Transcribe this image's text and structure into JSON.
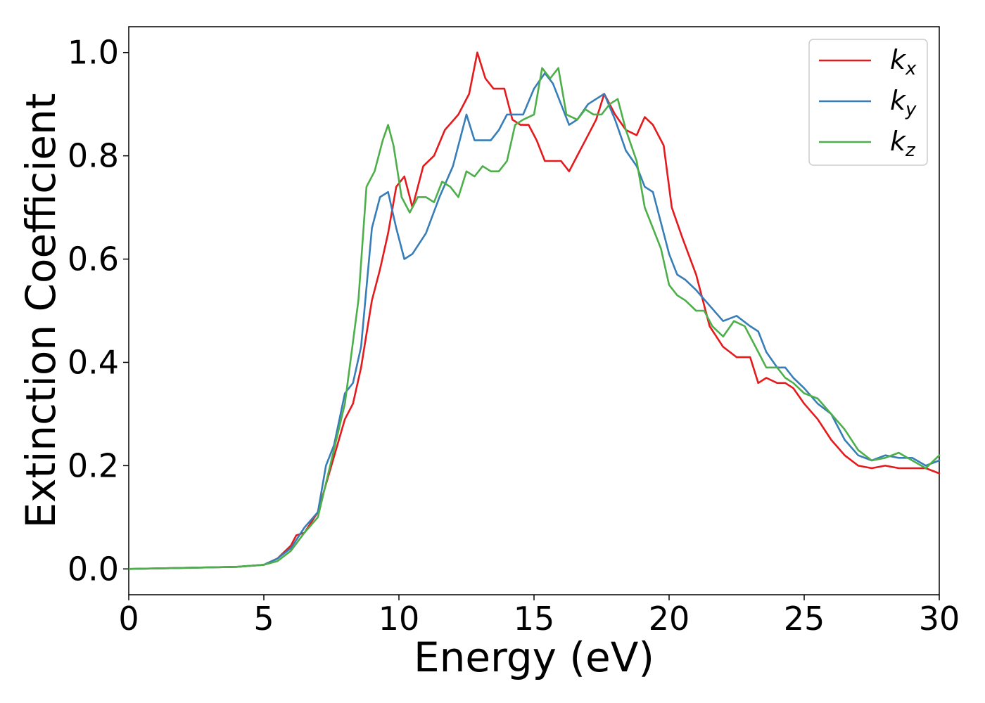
{
  "chart_data": {
    "type": "line",
    "xlabel": "Energy (eV)",
    "ylabel": "Extinction Coefficient",
    "xlim": [
      0,
      30
    ],
    "ylim": [
      -0.05,
      1.05
    ],
    "xticks": [
      0,
      5,
      10,
      15,
      20,
      25,
      30
    ],
    "xtick_labels": [
      "0",
      "5",
      "10",
      "15",
      "20",
      "25",
      "30"
    ],
    "yticks": [
      0.0,
      0.2,
      0.4,
      0.6,
      0.8,
      1.0
    ],
    "ytick_labels": [
      "0.0",
      "0.2",
      "0.4",
      "0.6",
      "0.8",
      "1.0"
    ],
    "grid": false,
    "legend_position": "top-right",
    "series": [
      {
        "name": "k_x",
        "label_main": "k",
        "label_sub": "x",
        "color": "#e41a1c",
        "x": [
          0,
          2,
          4,
          5,
          5.5,
          6,
          6.2,
          6.5,
          7,
          7.5,
          8,
          8.3,
          8.6,
          9,
          9.3,
          9.6,
          9.9,
          10.2,
          10.5,
          10.9,
          11.3,
          11.7,
          12.2,
          12.6,
          12.9,
          13.2,
          13.5,
          13.9,
          14.2,
          14.5,
          14.8,
          15.1,
          15.4,
          15.7,
          16,
          16.3,
          16.6,
          17,
          17.3,
          17.6,
          18,
          18.4,
          18.8,
          19.1,
          19.4,
          19.8,
          20.1,
          20.5,
          21,
          21.5,
          22,
          22.5,
          23,
          23.3,
          23.6,
          24,
          24.3,
          24.6,
          25,
          25.5,
          26,
          26.5,
          27,
          27.5,
          28,
          28.5,
          29,
          29.5,
          30
        ],
        "y": [
          0.0,
          0.002,
          0.004,
          0.008,
          0.02,
          0.045,
          0.065,
          0.07,
          0.11,
          0.2,
          0.29,
          0.32,
          0.39,
          0.52,
          0.58,
          0.65,
          0.74,
          0.76,
          0.7,
          0.78,
          0.8,
          0.85,
          0.88,
          0.92,
          1.0,
          0.95,
          0.93,
          0.93,
          0.87,
          0.86,
          0.86,
          0.83,
          0.79,
          0.79,
          0.79,
          0.77,
          0.8,
          0.84,
          0.87,
          0.92,
          0.88,
          0.85,
          0.84,
          0.875,
          0.86,
          0.82,
          0.7,
          0.64,
          0.57,
          0.47,
          0.43,
          0.41,
          0.41,
          0.36,
          0.37,
          0.36,
          0.36,
          0.35,
          0.32,
          0.29,
          0.25,
          0.22,
          0.2,
          0.195,
          0.2,
          0.195,
          0.195,
          0.195,
          0.185
        ]
      },
      {
        "name": "k_y",
        "label_main": "k",
        "label_sub": "y",
        "color": "#377eb8",
        "x": [
          0,
          2,
          4,
          5,
          5.5,
          6,
          6.5,
          7,
          7.3,
          7.6,
          8,
          8.3,
          8.6,
          9,
          9.3,
          9.6,
          9.9,
          10.2,
          10.5,
          11,
          11.5,
          12,
          12.5,
          12.8,
          13.1,
          13.4,
          13.7,
          14,
          14.3,
          14.6,
          15,
          15.4,
          15.7,
          16,
          16.3,
          16.6,
          17,
          17.3,
          17.6,
          18,
          18.4,
          18.8,
          19.1,
          19.4,
          19.7,
          20,
          20.3,
          20.6,
          21,
          21.5,
          22,
          22.5,
          23,
          23.3,
          23.6,
          24,
          24.3,
          24.6,
          25,
          25.5,
          26,
          26.5,
          27,
          27.5,
          28,
          28.5,
          29,
          29.5,
          30
        ],
        "y": [
          0.0,
          0.002,
          0.004,
          0.008,
          0.02,
          0.04,
          0.08,
          0.11,
          0.2,
          0.24,
          0.34,
          0.36,
          0.43,
          0.66,
          0.72,
          0.73,
          0.66,
          0.6,
          0.61,
          0.65,
          0.72,
          0.78,
          0.88,
          0.83,
          0.83,
          0.83,
          0.85,
          0.88,
          0.88,
          0.88,
          0.93,
          0.96,
          0.94,
          0.9,
          0.86,
          0.87,
          0.9,
          0.91,
          0.92,
          0.87,
          0.81,
          0.78,
          0.74,
          0.73,
          0.67,
          0.61,
          0.57,
          0.56,
          0.54,
          0.51,
          0.48,
          0.49,
          0.47,
          0.46,
          0.42,
          0.39,
          0.39,
          0.37,
          0.35,
          0.32,
          0.3,
          0.25,
          0.22,
          0.21,
          0.22,
          0.215,
          0.215,
          0.2,
          0.21
        ]
      },
      {
        "name": "k_z",
        "label_main": "k",
        "label_sub": "z",
        "color": "#4daf4a",
        "x": [
          0,
          2,
          4,
          5,
          5.5,
          6,
          6.5,
          7,
          7.5,
          8,
          8.5,
          8.8,
          9.1,
          9.4,
          9.6,
          9.8,
          10.1,
          10.4,
          10.7,
          11,
          11.3,
          11.6,
          11.9,
          12.2,
          12.5,
          12.8,
          13.1,
          13.4,
          13.7,
          14,
          14.3,
          14.6,
          15,
          15.3,
          15.6,
          15.9,
          16.2,
          16.6,
          16.9,
          17.2,
          17.5,
          17.8,
          18.1,
          18.4,
          18.8,
          19.1,
          19.4,
          19.7,
          20,
          20.3,
          20.6,
          21,
          21.3,
          21.6,
          22,
          22.4,
          22.8,
          23.2,
          23.6,
          24,
          24.3,
          24.6,
          25,
          25.5,
          26,
          26.5,
          27,
          27.5,
          28,
          28.5,
          29,
          29.5,
          30
        ],
        "y": [
          0.0,
          0.002,
          0.004,
          0.008,
          0.015,
          0.035,
          0.07,
          0.1,
          0.21,
          0.32,
          0.52,
          0.74,
          0.77,
          0.83,
          0.86,
          0.82,
          0.72,
          0.69,
          0.72,
          0.72,
          0.71,
          0.75,
          0.74,
          0.72,
          0.77,
          0.76,
          0.78,
          0.77,
          0.77,
          0.79,
          0.86,
          0.87,
          0.88,
          0.97,
          0.95,
          0.97,
          0.88,
          0.87,
          0.89,
          0.88,
          0.88,
          0.9,
          0.91,
          0.85,
          0.79,
          0.7,
          0.66,
          0.62,
          0.55,
          0.53,
          0.52,
          0.5,
          0.5,
          0.47,
          0.45,
          0.48,
          0.47,
          0.43,
          0.39,
          0.39,
          0.37,
          0.36,
          0.34,
          0.33,
          0.3,
          0.27,
          0.23,
          0.21,
          0.215,
          0.225,
          0.21,
          0.195,
          0.22
        ]
      }
    ]
  }
}
